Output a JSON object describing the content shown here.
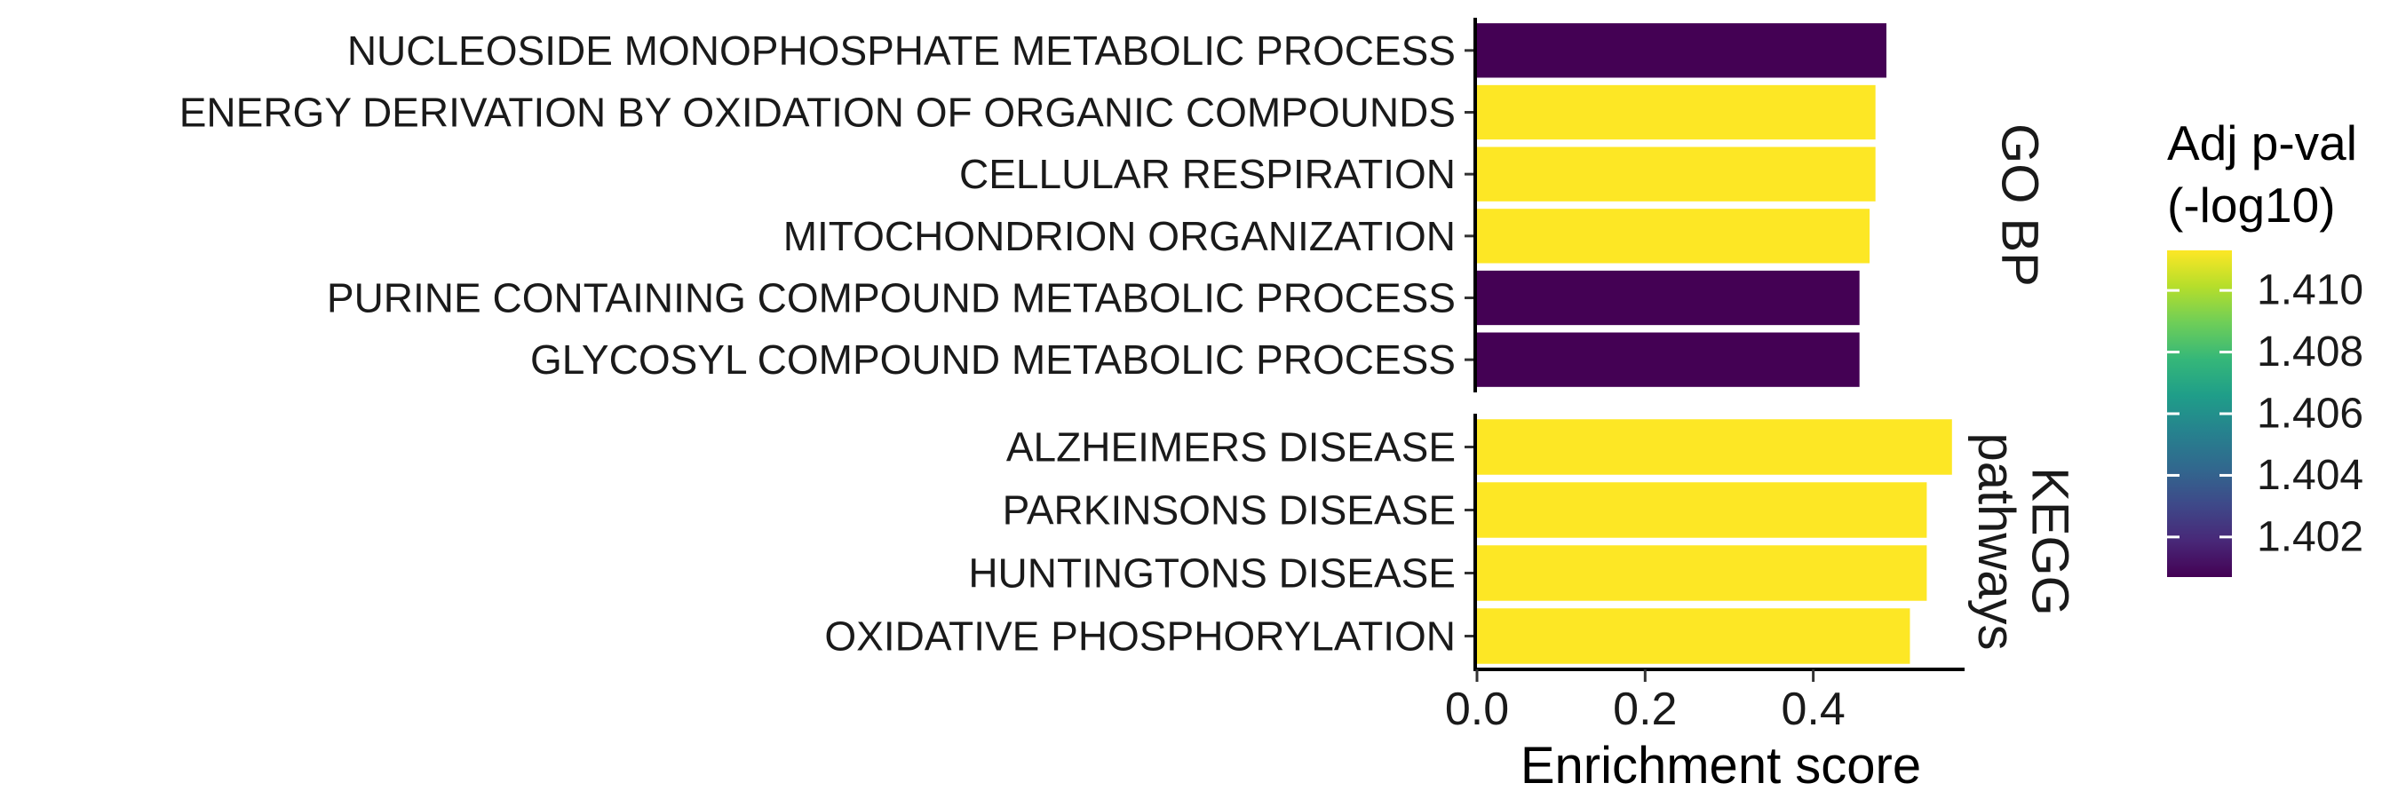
{
  "chart_data": {
    "type": "bar",
    "orientation": "horizontal",
    "xlabel": "Enrichment score",
    "xlim": [
      0,
      0.58
    ],
    "xticks": [
      "0.0",
      "0.2",
      "0.4"
    ],
    "xtick_values": [
      0,
      0.2,
      0.4
    ],
    "panels": [
      {
        "label": "GO BP",
        "categories": [
          "NUCLEOSIDE MONOPHOSPHATE METABOLIC PROCESS",
          "ENERGY DERIVATION BY OXIDATION OF ORGANIC COMPOUNDS",
          "CELLULAR RESPIRATION",
          "MITOCHONDRION ORGANIZATION",
          "PURINE CONTAINING COMPOUND METABOLIC PROCESS",
          "GLYCOSYL COMPOUND METABOLIC PROCESS"
        ],
        "values": [
          0.487,
          0.474,
          0.474,
          0.467,
          0.455,
          0.455
        ],
        "adj_pval_neglog10": [
          1.4007,
          1.4113,
          1.4113,
          1.4113,
          1.4007,
          1.4007
        ]
      },
      {
        "label_lines": [
          "KEGG",
          "pathways"
        ],
        "categories": [
          "ALZHEIMERS DISEASE",
          "PARKINSONS DISEASE",
          "HUNTINGTONS DISEASE",
          "OXIDATIVE PHOSPHORYLATION"
        ],
        "values": [
          0.565,
          0.535,
          0.535,
          0.515
        ],
        "adj_pval_neglog10": [
          1.4113,
          1.4113,
          1.4113,
          1.4113
        ]
      }
    ],
    "legend": {
      "title_lines": [
        "Adj p-val",
        "(-log10)"
      ],
      "ticks": [
        "1.402",
        "1.404",
        "1.406",
        "1.408",
        "1.410"
      ],
      "tick_values": [
        1.402,
        1.404,
        1.406,
        1.408,
        1.41
      ],
      "range": [
        1.4007,
        1.4113
      ],
      "colormap": "viridis",
      "placement": "right"
    }
  },
  "colors": {
    "viridis": [
      "#440154",
      "#482878",
      "#3e4989",
      "#31688e",
      "#26828e",
      "#1f9e89",
      "#35b779",
      "#6ece58",
      "#b5de2b",
      "#fde725"
    ],
    "axis": "#000000",
    "tick_text": "#1a1a1a"
  }
}
